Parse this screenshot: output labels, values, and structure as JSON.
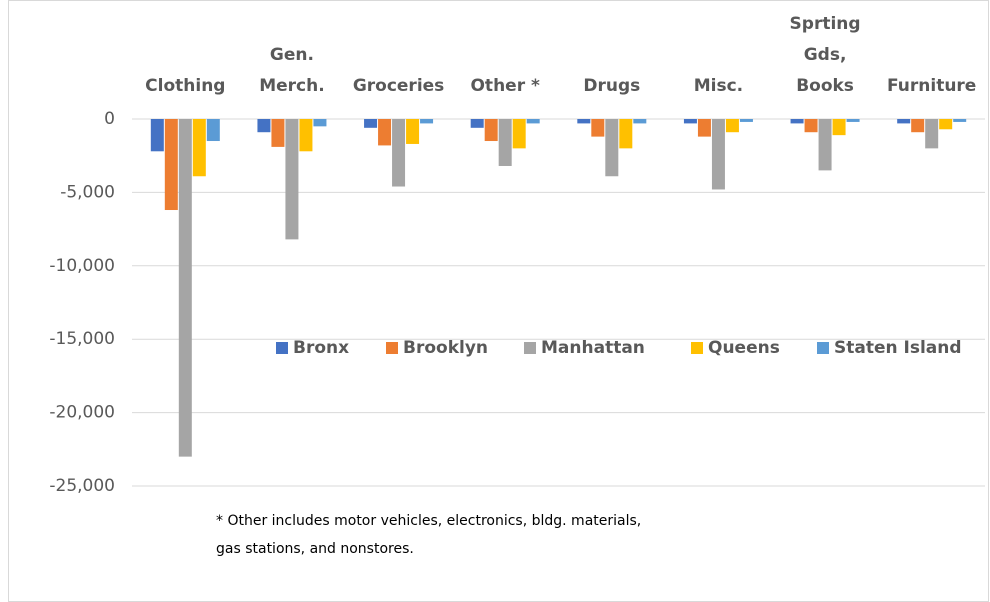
{
  "chart_data": {
    "type": "bar",
    "categories": [
      "Clothing",
      "Gen.\nMerch.",
      "Groceries",
      "Other *",
      "Drugs",
      "Misc.",
      "Sprting\nGds,\nBooks",
      "Furniture"
    ],
    "series": [
      {
        "name": "Bronx",
        "color": "#4472c4",
        "values": [
          -2200,
          -900,
          -600,
          -600,
          -300,
          -300,
          -300,
          -300
        ]
      },
      {
        "name": "Brooklyn",
        "color": "#ed7d31",
        "values": [
          -6200,
          -1900,
          -1800,
          -1500,
          -1200,
          -1200,
          -900,
          -900
        ]
      },
      {
        "name": "Manhattan",
        "color": "#a5a5a5",
        "values": [
          -23000,
          -8200,
          -4600,
          -3200,
          -3900,
          -4800,
          -3500,
          -2000
        ]
      },
      {
        "name": "Queens",
        "color": "#ffc000",
        "values": [
          -3900,
          -2200,
          -1700,
          -2000,
          -2000,
          -900,
          -1100,
          -700
        ]
      },
      {
        "name": "Staten Island",
        "color": "#5b9bd5",
        "values": [
          -1500,
          -500,
          -300,
          -300,
          -300,
          -200,
          -200,
          -200
        ]
      }
    ],
    "ylim": [
      -25000,
      0
    ],
    "yticks": [
      0,
      {
        "value": -5000,
        "label": "-5,000"
      },
      {
        "value": -10000,
        "label": "-10,000"
      },
      {
        "value": -15000,
        "label": "-15,000"
      },
      {
        "value": -20000,
        "label": "-20,000"
      },
      {
        "value": -25000,
        "label": "-25,000"
      }
    ],
    "grid": true,
    "legend": "center",
    "annotation": "* Other includes motor vehicles, electronics, bldg. materials,\ngas stations, and nonstores."
  }
}
